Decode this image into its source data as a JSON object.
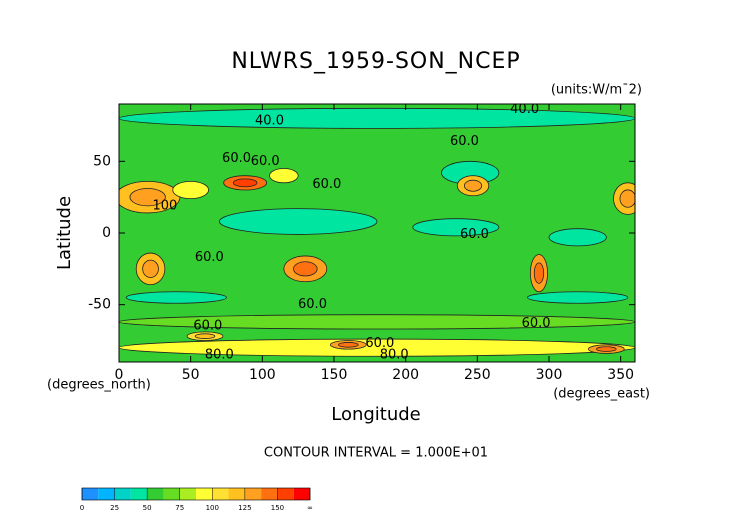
{
  "chart_data": {
    "type": "contour",
    "title": "NLWRS_1959-SON_NCEP",
    "units": "(units:W/m¯2)",
    "xlabel": "Longitude",
    "ylabel": "Latitude",
    "xunit": "(degrees_east)",
    "yunit": "(degrees_north)",
    "footnote": "CONTOUR INTERVAL = 1.000E+01",
    "xlim": [
      0,
      360
    ],
    "ylim": [
      -90,
      90
    ],
    "xticks": [
      0,
      50,
      100,
      150,
      200,
      250,
      300,
      350
    ],
    "yticks": [
      -50,
      0,
      50
    ],
    "background_value": 58,
    "level_step": 12.5,
    "colors": [
      "#1e90ff",
      "#00b4ff",
      "#00d2c8",
      "#00e6a0",
      "#33cc33",
      "#66dd22",
      "#aaee22",
      "#ffff33",
      "#ffe033",
      "#ffc020",
      "#ffa020",
      "#ff7010",
      "#ff4000",
      "#ff0000"
    ],
    "colorbar_ticks": [
      0,
      25,
      50,
      75,
      100,
      125,
      150,
      {
        "value": 175,
        "label": "∞"
      }
    ],
    "patches": [
      {
        "lon": 180,
        "lat": 80,
        "lon_span": 360,
        "lat_span": 14,
        "value": 45
      },
      {
        "lon": 245,
        "lat": 42,
        "lon_span": 40,
        "lat_span": 16,
        "value": 45
      },
      {
        "lon": 125,
        "lat": 8,
        "lon_span": 110,
        "lat_span": 18,
        "value": 45
      },
      {
        "lon": 235,
        "lat": 4,
        "lon_span": 60,
        "lat_span": 12,
        "value": 45
      },
      {
        "lon": 320,
        "lat": -3,
        "lon_span": 40,
        "lat_span": 12,
        "value": 45
      },
      {
        "lon": 40,
        "lat": -45,
        "lon_span": 70,
        "lat_span": 8,
        "value": 45
      },
      {
        "lon": 320,
        "lat": -45,
        "lon_span": 70,
        "lat_span": 8,
        "value": 45
      },
      {
        "lon": 180,
        "lat": -62,
        "lon_span": 360,
        "lat_span": 10,
        "value": 70
      },
      {
        "lon": 180,
        "lat": -80,
        "lon_span": 360,
        "lat_span": 12,
        "value": 95
      },
      {
        "lon": 20,
        "lat": 25,
        "lon_span": 45,
        "lat_span": 22,
        "value": 115
      },
      {
        "lon": 50,
        "lat": 30,
        "lon_span": 25,
        "lat_span": 12,
        "value": 95
      },
      {
        "lon": 88,
        "lat": 35,
        "lon_span": 30,
        "lat_span": 10,
        "value": 140
      },
      {
        "lon": 115,
        "lat": 40,
        "lon_span": 20,
        "lat_span": 10,
        "value": 90
      },
      {
        "lon": 247,
        "lat": 33,
        "lon_span": 22,
        "lat_span": 14,
        "value": 120
      },
      {
        "lon": 355,
        "lat": 24,
        "lon_span": 20,
        "lat_span": 22,
        "value": 120
      },
      {
        "lon": 22,
        "lat": -25,
        "lon_span": 20,
        "lat_span": 22,
        "value": 120
      },
      {
        "lon": 130,
        "lat": -25,
        "lon_span": 30,
        "lat_span": 18,
        "value": 125
      },
      {
        "lon": 293,
        "lat": -28,
        "lon_span": 12,
        "lat_span": 26,
        "value": 130
      },
      {
        "lon": 60,
        "lat": -72,
        "lon_span": 25,
        "lat_span": 6,
        "value": 110
      },
      {
        "lon": 160,
        "lat": -78,
        "lon_span": 25,
        "lat_span": 6,
        "value": 130
      },
      {
        "lon": 340,
        "lat": -81,
        "lon_span": 25,
        "lat_span": 6,
        "value": 135
      }
    ],
    "contour_labels": [
      {
        "lon": 105,
        "lat": 78,
        "label": "40.0"
      },
      {
        "lon": 283,
        "lat": 86,
        "label": "40.0"
      },
      {
        "lon": 82,
        "lat": 52,
        "label": "60.0"
      },
      {
        "lon": 102,
        "lat": 50,
        "label": "60.0"
      },
      {
        "lon": 145,
        "lat": 34,
        "label": "60.0"
      },
      {
        "lon": 241,
        "lat": 64,
        "label": "60.0"
      },
      {
        "lon": 32,
        "lat": 19,
        "label": "100"
      },
      {
        "lon": 63,
        "lat": -17,
        "label": "60.0"
      },
      {
        "lon": 248,
        "lat": -1,
        "label": "60.0"
      },
      {
        "lon": 135,
        "lat": -50,
        "label": "60.0"
      },
      {
        "lon": 291,
        "lat": -63,
        "label": "60.0"
      },
      {
        "lon": 62,
        "lat": -65,
        "label": "60.0"
      },
      {
        "lon": 70,
        "lat": -85,
        "label": "80.0"
      },
      {
        "lon": 182,
        "lat": -77,
        "label": "60.0"
      },
      {
        "lon": 192,
        "lat": -85,
        "label": "80.0"
      }
    ]
  }
}
